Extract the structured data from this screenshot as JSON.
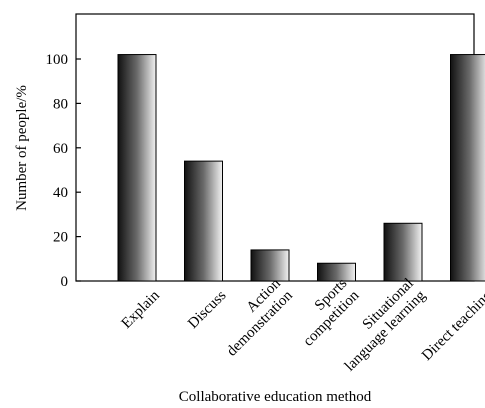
{
  "chart_data": {
    "type": "bar",
    "categories": [
      [
        "Explain"
      ],
      [
        "Discuss"
      ],
      [
        "Action",
        "demonstration"
      ],
      [
        "Sports",
        "competition"
      ],
      [
        "Situational",
        "language learning"
      ],
      [
        "Direct teaching"
      ]
    ],
    "values": [
      102,
      54,
      14,
      8,
      26,
      102
    ],
    "xlabel": "Collaborative education method",
    "ylabel": "Number of people/%",
    "ylim": [
      0,
      120
    ],
    "yticks": [
      0,
      20,
      40,
      60,
      80,
      100
    ],
    "ytick_labels": [
      "0",
      "20",
      "40",
      "60",
      "80",
      "100"
    ],
    "grid": false,
    "bar_fill": "gradient dark-to-light",
    "colors": {
      "bar_dark": "#111111",
      "bar_light": "#f2f2f2",
      "axis": "#000000"
    }
  }
}
